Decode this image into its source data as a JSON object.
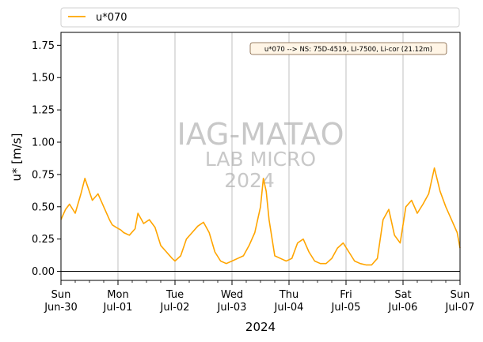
{
  "chart_data": {
    "type": "line",
    "ylabel": "u* [m/s]",
    "xlabel": "2024",
    "ylim": [
      -0.07,
      1.85
    ],
    "yticks": [
      "0.00",
      "0.25",
      "0.50",
      "0.75",
      "1.00",
      "1.25",
      "1.50",
      "1.75"
    ],
    "xticks": [
      {
        "day": "Sun",
        "date": "Jun-30"
      },
      {
        "day": "Mon",
        "date": "Jul-01"
      },
      {
        "day": "Tue",
        "date": "Jul-02"
      },
      {
        "day": "Wed",
        "date": "Jul-03"
      },
      {
        "day": "Thu",
        "date": "Jul-04"
      },
      {
        "day": "Fri",
        "date": "Jul-05"
      },
      {
        "day": "Sat",
        "date": "Jul-06"
      },
      {
        "day": "Sun",
        "date": "Jul-07"
      }
    ],
    "grid": "vertical at day ticks",
    "legend_position": "top, above plot",
    "annotation": "u*070 --> NS: 75D-4519, LI-7500, Li-cor (21.12m)",
    "watermark": [
      "IAG-MATAO",
      "LAB MICRO",
      "2024"
    ],
    "series": [
      {
        "name": "u*070",
        "color": "#ffa500",
        "x_days_from_jun30": [
          0.0,
          0.08,
          0.15,
          0.25,
          0.35,
          0.42,
          0.55,
          0.65,
          0.75,
          0.85,
          0.9,
          0.97,
          1.05,
          1.1,
          1.2,
          1.3,
          1.35,
          1.45,
          1.55,
          1.65,
          1.75,
          1.85,
          1.95,
          2.0,
          2.1,
          2.2,
          2.3,
          2.4,
          2.5,
          2.6,
          2.7,
          2.8,
          2.9,
          3.0,
          3.1,
          3.2,
          3.3,
          3.4,
          3.5,
          3.55,
          3.6,
          3.65,
          3.75,
          3.85,
          3.95,
          4.05,
          4.15,
          4.25,
          4.35,
          4.45,
          4.55,
          4.65,
          4.75,
          4.85,
          4.95,
          5.05,
          5.15,
          5.25,
          5.35,
          5.45,
          5.55,
          5.65,
          5.75,
          5.85,
          5.95,
          6.05,
          6.15,
          6.25,
          6.35,
          6.45,
          6.55,
          6.65,
          6.75,
          6.85,
          6.95,
          7.0
        ],
        "values": [
          0.4,
          0.48,
          0.52,
          0.45,
          0.6,
          0.72,
          0.55,
          0.6,
          0.5,
          0.4,
          0.36,
          0.34,
          0.32,
          0.3,
          0.28,
          0.33,
          0.45,
          0.37,
          0.4,
          0.34,
          0.2,
          0.15,
          0.1,
          0.08,
          0.12,
          0.25,
          0.3,
          0.35,
          0.38,
          0.3,
          0.15,
          0.08,
          0.06,
          0.08,
          0.1,
          0.12,
          0.2,
          0.3,
          0.5,
          0.72,
          0.62,
          0.4,
          0.12,
          0.1,
          0.08,
          0.1,
          0.22,
          0.25,
          0.15,
          0.08,
          0.06,
          0.06,
          0.1,
          0.18,
          0.22,
          0.15,
          0.08,
          0.06,
          0.05,
          0.05,
          0.1,
          0.4,
          0.48,
          0.28,
          0.22,
          0.5,
          0.55,
          0.45,
          0.52,
          0.6,
          0.8,
          0.62,
          0.5,
          0.4,
          0.3,
          0.18
        ]
      }
    ]
  }
}
